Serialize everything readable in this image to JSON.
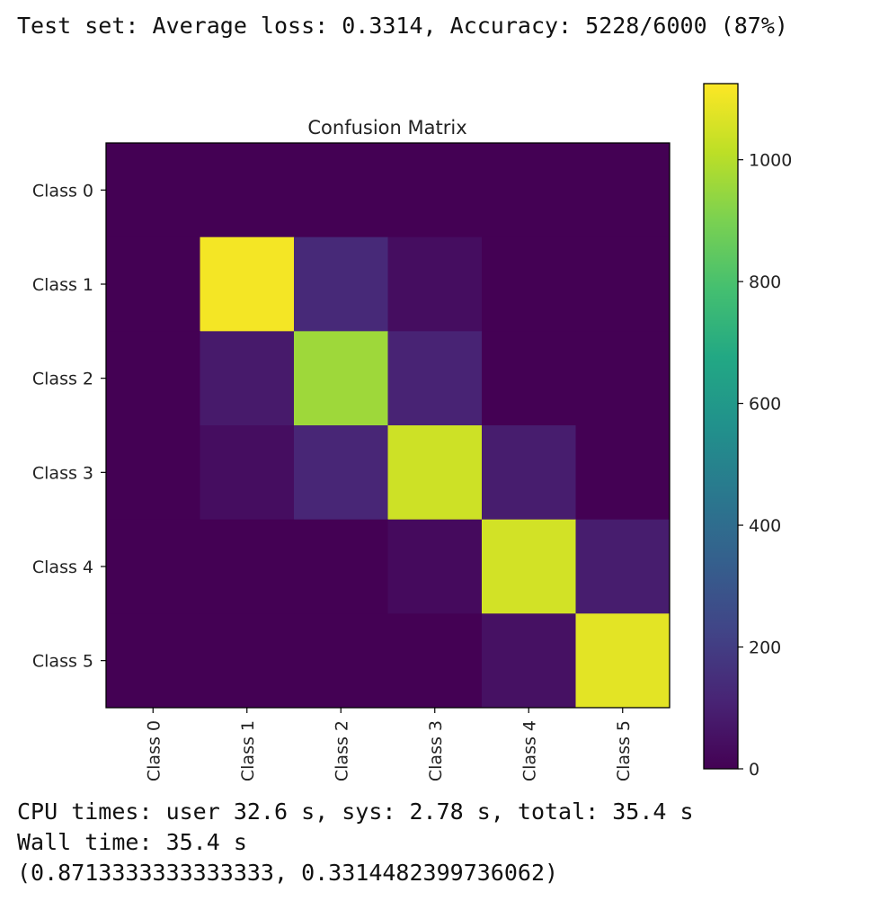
{
  "output": {
    "test_line": "Test set: Average loss: 0.3314, Accuracy: 5228/6000 (87%)",
    "cpu_line": "CPU times: user 32.6 s, sys: 2.78 s, total: 35.4 s",
    "wall_line": "Wall time: 35.4 s",
    "result_line": "(0.8713333333333333, 0.3314482399736062)"
  },
  "chart_data": {
    "type": "heatmap",
    "title": "Confusion Matrix",
    "x_categories": [
      "Class 0",
      "Class 1",
      "Class 2",
      "Class 3",
      "Class 4",
      "Class 5"
    ],
    "y_categories": [
      "Class 0",
      "Class 1",
      "Class 2",
      "Class 3",
      "Class 4",
      "Class 5"
    ],
    "values": [
      [
        0,
        0,
        0,
        0,
        0,
        0
      ],
      [
        0,
        1110,
        130,
        40,
        0,
        0
      ],
      [
        0,
        80,
        960,
        110,
        0,
        0
      ],
      [
        0,
        40,
        120,
        1040,
        90,
        0
      ],
      [
        0,
        0,
        0,
        30,
        1050,
        90
      ],
      [
        0,
        0,
        0,
        0,
        50,
        1080
      ]
    ],
    "colormap": "viridis",
    "colorbar": {
      "range": [
        0,
        1125
      ],
      "ticks": [
        0,
        200,
        400,
        600,
        800,
        1000
      ]
    },
    "grid": false
  }
}
